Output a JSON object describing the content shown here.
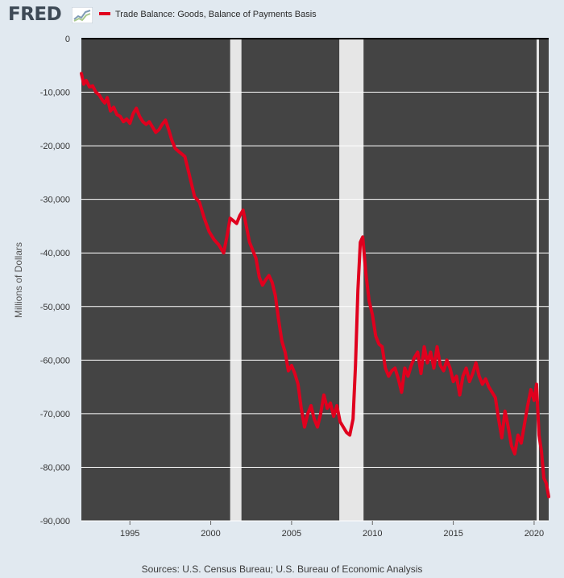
{
  "header": {
    "logo_text": "FRED",
    "legend_label": "Trade Balance: Goods, Balance of Payments Basis"
  },
  "footer": {
    "sources": "Sources: U.S. Census Bureau; U.S. Bureau of Economic Analysis"
  },
  "colors": {
    "background": "#e1e9f0",
    "plot_background": "#444444",
    "series": "#e0001e",
    "recession": "#e6e6e6",
    "gridline": "#ffffff"
  },
  "chart_data": {
    "type": "line",
    "ylabel": "Millions of Dollars",
    "xlim": [
      1992.0,
      2020.9
    ],
    "ylim": [
      -90000,
      0
    ],
    "grid": true,
    "x_ticks": [
      1995,
      2000,
      2005,
      2010,
      2015,
      2020
    ],
    "y_ticks": [
      0,
      -10000,
      -20000,
      -30000,
      -40000,
      -50000,
      -60000,
      -70000,
      -80000,
      -90000
    ],
    "y_tick_labels": [
      "0",
      "-10,000",
      "-20,000",
      "-30,000",
      "-40,000",
      "-50,000",
      "-60,000",
      "-70,000",
      "-80,000",
      "-90,000"
    ],
    "x_tick_labels": [
      "1995",
      "2000",
      "2005",
      "2010",
      "2015",
      "2020"
    ],
    "legend_position": "top",
    "recessions": [
      [
        2001.2,
        2001.9
      ],
      [
        2007.95,
        2009.45
      ],
      [
        2020.15,
        2020.3
      ]
    ],
    "series": [
      {
        "name": "Trade Balance: Goods, Balance of Payments Basis",
        "x": [
          1992.0,
          1992.15,
          1992.3,
          1992.5,
          1992.7,
          1992.9,
          1993.1,
          1993.3,
          1993.45,
          1993.6,
          1993.8,
          1994.0,
          1994.2,
          1994.4,
          1994.6,
          1994.8,
          1995.0,
          1995.2,
          1995.4,
          1995.6,
          1995.8,
          1996.0,
          1996.2,
          1996.4,
          1996.6,
          1996.8,
          1997.0,
          1997.2,
          1997.4,
          1997.6,
          1997.8,
          1998.0,
          1998.2,
          1998.4,
          1998.6,
          1998.8,
          1999.0,
          1999.3,
          1999.6,
          1999.9,
          2000.2,
          2000.5,
          2000.8,
          2001.0,
          2001.2,
          2001.4,
          2001.6,
          2001.8,
          2002.0,
          2002.2,
          2002.4,
          2002.6,
          2002.8,
          2003.0,
          2003.2,
          2003.4,
          2003.6,
          2003.8,
          2004.0,
          2004.2,
          2004.4,
          2004.6,
          2004.8,
          2005.0,
          2005.2,
          2005.4,
          2005.6,
          2005.8,
          2006.0,
          2006.2,
          2006.4,
          2006.6,
          2006.8,
          2007.0,
          2007.2,
          2007.4,
          2007.6,
          2007.8,
          2008.0,
          2008.2,
          2008.4,
          2008.6,
          2008.8,
          2008.95,
          2009.1,
          2009.25,
          2009.4,
          2009.6,
          2009.8,
          2010.0,
          2010.2,
          2010.4,
          2010.6,
          2010.8,
          2011.0,
          2011.2,
          2011.4,
          2011.6,
          2011.8,
          2012.0,
          2012.2,
          2012.4,
          2012.6,
          2012.8,
          2013.0,
          2013.2,
          2013.4,
          2013.6,
          2013.8,
          2014.0,
          2014.2,
          2014.4,
          2014.6,
          2014.8,
          2015.0,
          2015.2,
          2015.4,
          2015.6,
          2015.8,
          2016.0,
          2016.2,
          2016.4,
          2016.6,
          2016.8,
          2017.0,
          2017.2,
          2017.4,
          2017.6,
          2017.8,
          2018.0,
          2018.2,
          2018.4,
          2018.6,
          2018.8,
          2019.0,
          2019.2,
          2019.4,
          2019.6,
          2019.8,
          2020.0,
          2020.15,
          2020.3,
          2020.45,
          2020.6,
          2020.75,
          2020.9
        ],
        "values": [
          -6500,
          -8500,
          -7800,
          -9000,
          -8800,
          -10000,
          -10500,
          -11500,
          -12000,
          -11000,
          -13500,
          -12800,
          -14200,
          -14500,
          -15500,
          -15000,
          -15800,
          -14000,
          -13000,
          -14500,
          -15500,
          -16000,
          -15500,
          -16500,
          -17500,
          -17000,
          -16000,
          -15200,
          -17000,
          -19000,
          -20500,
          -21000,
          -21500,
          -22000,
          -24500,
          -27000,
          -29500,
          -30500,
          -33500,
          -36000,
          -37500,
          -38500,
          -40000,
          -37000,
          -33500,
          -34000,
          -34500,
          -33000,
          -32000,
          -35000,
          -38000,
          -39500,
          -41000,
          -44500,
          -46000,
          -45000,
          -44200,
          -45500,
          -48000,
          -52500,
          -56500,
          -58500,
          -62000,
          -61000,
          -62500,
          -64500,
          -69000,
          -72500,
          -70000,
          -68500,
          -71000,
          -72500,
          -70000,
          -66500,
          -69000,
          -68000,
          -70500,
          -68500,
          -71500,
          -72500,
          -73500,
          -74000,
          -71000,
          -61000,
          -47000,
          -38000,
          -37000,
          -44000,
          -49000,
          -51500,
          -55500,
          -57000,
          -57500,
          -61500,
          -63000,
          -62000,
          -61500,
          -63500,
          -66000,
          -61500,
          -63000,
          -61000,
          -59500,
          -58500,
          -62500,
          -57500,
          -60500,
          -58500,
          -61500,
          -57500,
          -61000,
          -62000,
          -60000,
          -61500,
          -64000,
          -63000,
          -66500,
          -63000,
          -61500,
          -64000,
          -62500,
          -60500,
          -63000,
          -64500,
          -63500,
          -65000,
          -66000,
          -67000,
          -71000,
          -74500,
          -69500,
          -72500,
          -76000,
          -77500,
          -74000,
          -75500,
          -72000,
          -68500,
          -65500,
          -67500,
          -64500,
          -74000,
          -77000,
          -82000,
          -83000,
          -85500
        ]
      }
    ]
  }
}
